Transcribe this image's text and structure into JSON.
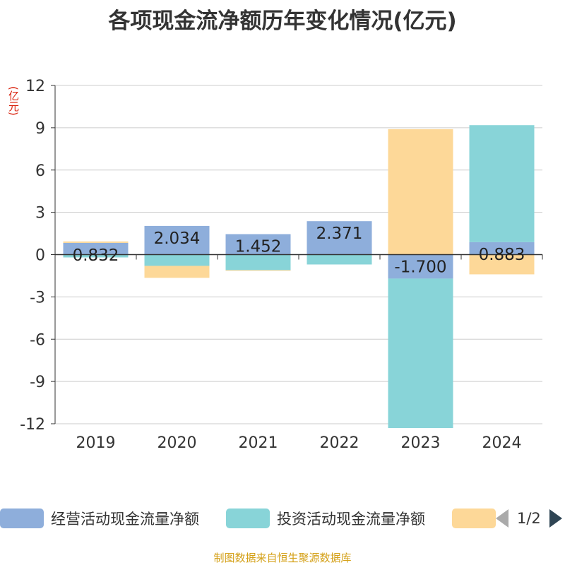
{
  "title": "各项现金流净额历年变化情况(亿元)",
  "unit_label": "(亿元)",
  "source": "制图数据来自恒生聚源数据库",
  "pager": {
    "text": "1/2"
  },
  "legend": [
    {
      "label": "经营活动现金流量净额",
      "color": "#8eaedb"
    },
    {
      "label": "投资活动现金流量净额",
      "color": "#88d4d8"
    },
    {
      "label": "",
      "color": "#fdd898"
    }
  ],
  "chart_data": {
    "type": "bar",
    "stacked": true,
    "title": "各项现金流净额历年变化情况(亿元)",
    "ylabel": "(亿元)",
    "ylim": [
      -12,
      12
    ],
    "yticks": [
      12,
      9,
      6,
      3,
      0,
      -3,
      -6,
      -9,
      -12
    ],
    "grid": true,
    "legend_position": "bottom",
    "categories": [
      "2019",
      "2020",
      "2021",
      "2022",
      "2023",
      "2024"
    ],
    "series": [
      {
        "name": "经营活动现金流量净额",
        "color": "#8eaedb",
        "values": [
          0.832,
          2.034,
          1.452,
          2.371,
          -1.7,
          0.883
        ]
      },
      {
        "name": "投资活动现金流量净额",
        "color": "#88d4d8",
        "values": [
          -0.2,
          -0.8,
          -1.1,
          -0.7,
          -10.6,
          8.3
        ]
      },
      {
        "color": "#fdd898",
        "values": [
          0.1,
          -0.85,
          -0.05,
          0.0,
          8.9,
          -1.4
        ]
      }
    ],
    "data_labels": [
      "0.832",
      "2.034",
      "1.452",
      "2.371",
      "-1.700",
      "0.883"
    ]
  }
}
